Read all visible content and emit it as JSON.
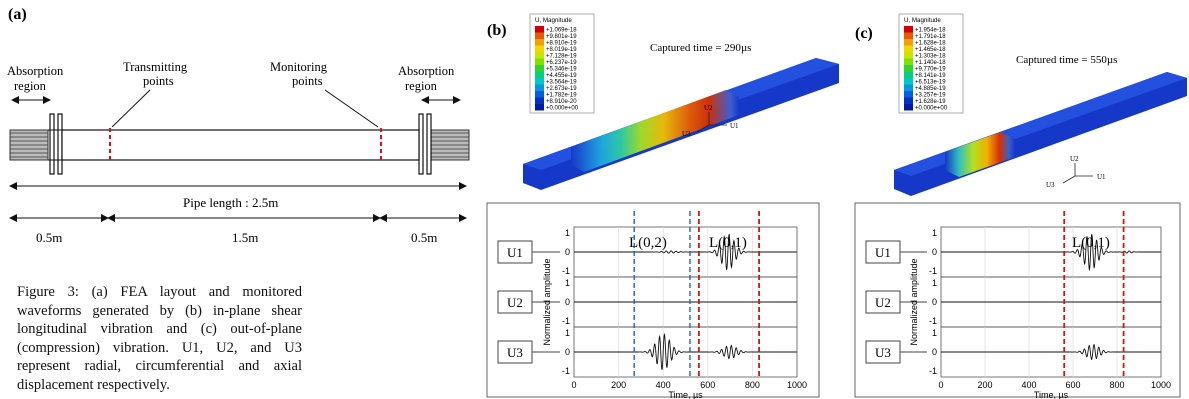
{
  "panel_a": {
    "label": "(a)",
    "absorption_left": [
      "Absorption",
      "region"
    ],
    "absorption_right": [
      "Absorption",
      "region"
    ],
    "transmitting": [
      "Transmitting",
      "points"
    ],
    "monitoring": [
      "Monitoring",
      "points"
    ],
    "pipe_length": "Pipe length : 2.5m",
    "seg1": "0.5m",
    "seg2": "1.5m",
    "seg3": "0.5m"
  },
  "caption": "Figure 3: (a) FEA layout and monitored waveforms generated by (b) in-plane shear longitudinal vibration and (c) out-of-plane (compression) vibration. U1, U2, and U3 represent radial, circumferential and axial displacement respectively.",
  "panel_b": {
    "label": "(b)",
    "legend_title": "U, Magnitude",
    "legend_values": [
      "+1.069e-18",
      "+9.801e-19",
      "+8.910e-19",
      "+8.019e-19",
      "+7.128e-19",
      "+6.237e-19",
      "+5.346e-19",
      "+4.455e-19",
      "+3.564e-19",
      "+2.673e-19",
      "+1.782e-19",
      "+8.910e-20",
      "+0.000e+00"
    ],
    "captured_time": "Captured time = 290µs",
    "axes": {
      "u1": "U1",
      "u2": "U2",
      "u3": "U3"
    }
  },
  "panel_c": {
    "label": "(c)",
    "legend_title": "U, Magnitude",
    "legend_values": [
      "+1.954e-18",
      "+1.791e-18",
      "+1.628e-18",
      "+1.465e-18",
      "+1.303e-18",
      "+1.140e-18",
      "+9.770e-19",
      "+8.141e-19",
      "+6.513e-19",
      "+4.885e-19",
      "+3.257e-19",
      "+1.628e-19",
      "+0.000e+00"
    ],
    "captured_time": "Captured time = 550µs",
    "axes": {
      "u1": "U1",
      "u2": "U2",
      "u3": "U3"
    }
  },
  "colors": [
    "#d40000",
    "#e85a00",
    "#f4a000",
    "#f0d800",
    "#c8e600",
    "#80e000",
    "#30d630",
    "#00d080",
    "#00c8c8",
    "#0098e0",
    "#0060e0",
    "#0030c8",
    "#0018a8"
  ],
  "chart_data": [
    {
      "type": "line",
      "panel": "b",
      "rows": [
        "U1",
        "U2",
        "U3"
      ],
      "ylabel": "Normalized amplitude",
      "xlabel": "Time, µs",
      "xlim": [
        0,
        1000
      ],
      "ylim": [
        -1,
        1
      ],
      "xticks": [
        "0",
        "200",
        "400",
        "600",
        "800",
        "1000"
      ],
      "yticks": [
        "1",
        "0",
        "-1"
      ],
      "annotations": [
        "L(0,2)",
        "L(0,1)"
      ],
      "blue_markers_x": [
        270,
        520
      ],
      "red_markers_x": [
        560,
        830
      ],
      "series": [
        {
          "packets": [
            {
              "center": 430,
              "width": 90,
              "amp": 0.06
            },
            {
              "center": 690,
              "width": 80,
              "amp": 0.95
            }
          ]
        },
        {
          "packets": []
        },
        {
          "packets": [
            {
              "center": 400,
              "width": 85,
              "amp": 0.95
            },
            {
              "center": 700,
              "width": 80,
              "amp": 0.35
            }
          ]
        }
      ]
    },
    {
      "type": "line",
      "panel": "c",
      "rows": [
        "U1",
        "U2",
        "U3"
      ],
      "ylabel": "Normalized amplitude",
      "xlabel": "Time, µs",
      "xlim": [
        0,
        1000
      ],
      "ylim": [
        -1,
        1
      ],
      "xticks": [
        "0",
        "200",
        "400",
        "600",
        "800",
        "1000"
      ],
      "yticks": [
        "1",
        "0",
        "-1"
      ],
      "annotations": [
        "L(0,1)"
      ],
      "blue_markers_x": [],
      "red_markers_x": [
        560,
        830
      ],
      "series": [
        {
          "packets": [
            {
              "center": 680,
              "width": 85,
              "amp": 0.95
            },
            {
              "center": 850,
              "width": 50,
              "amp": 0.06
            }
          ]
        },
        {
          "packets": []
        },
        {
          "packets": [
            {
              "center": 690,
              "width": 80,
              "amp": 0.4
            }
          ]
        }
      ]
    }
  ]
}
